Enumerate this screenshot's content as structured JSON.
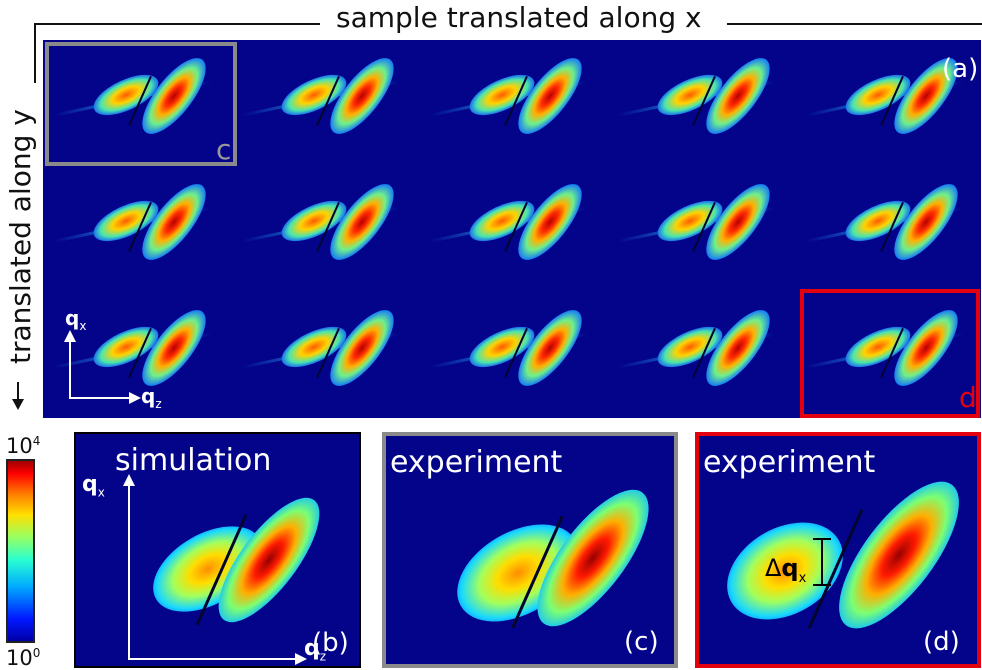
{
  "top": {
    "x_label": "sample translated along x",
    "y_label": "translated along y",
    "panel_label": "(a)",
    "qx": "q",
    "qx_sub": "x",
    "qz": "q",
    "qz_sub": "z",
    "inset_c": "c",
    "inset_d": "d"
  },
  "colorbar": {
    "max_label": "10",
    "max_exp": "4",
    "min_label": "10",
    "min_exp": "0"
  },
  "panels": [
    {
      "title": "simulation",
      "label": "(b)"
    },
    {
      "title": "experiment",
      "label": "(c)"
    },
    {
      "title": "experiment",
      "label": "(d)"
    }
  ],
  "delta": {
    "symbol": "Δ",
    "q": "q",
    "sub": "x"
  },
  "colors": {
    "background": "#03048a",
    "gray_box": "#8a8a8a",
    "red_box": "#e3000f"
  }
}
